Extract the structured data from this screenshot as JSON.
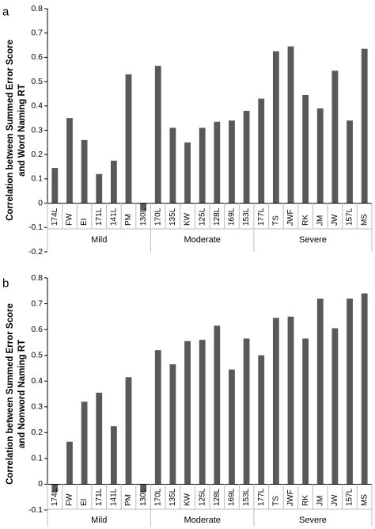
{
  "chart_data": [
    {
      "panel_label": "a",
      "type": "bar",
      "ylabel": [
        "Correlation between Summed Error Score",
        "and Word Naming RT"
      ],
      "ylim": [
        -0.2,
        0.8
      ],
      "yticks": [
        "-0.2",
        "-0.1",
        "0",
        "0.1",
        "0.2",
        "0.3",
        "0.4",
        "0.5",
        "0.6",
        "0.7",
        "0.8"
      ],
      "grid": false,
      "bar_color": "#595959",
      "categories": [
        "174L",
        "FW",
        "EI",
        "171L",
        "141L",
        "PM",
        "130L",
        "170L",
        "135L",
        "KW",
        "125L",
        "128L",
        "169L",
        "153L",
        "177L",
        "TS",
        "JWF",
        "RK",
        "JM",
        "JW",
        "157L",
        "MS"
      ],
      "values": [
        0.145,
        0.35,
        0.26,
        0.12,
        0.175,
        0.53,
        -0.03,
        0.565,
        0.31,
        0.25,
        0.31,
        0.335,
        0.34,
        0.38,
        0.43,
        0.625,
        0.645,
        0.445,
        0.39,
        0.545,
        0.34,
        0.635
      ],
      "groups": [
        {
          "label": "Mild",
          "start": 0,
          "end": 6
        },
        {
          "label": "Moderate",
          "start": 7,
          "end": 13
        },
        {
          "label": "Severe",
          "start": 14,
          "end": 21
        }
      ]
    },
    {
      "panel_label": "b",
      "type": "bar",
      "ylabel": [
        "Correlation between Summed Error Score",
        "and Nonword Naming RT"
      ],
      "ylim": [
        -0.1,
        0.8
      ],
      "yticks": [
        "-0.1",
        "0",
        "0.1",
        "0.2",
        "0.3",
        "0.4",
        "0.5",
        "0.6",
        "0.7",
        "0.8"
      ],
      "grid": false,
      "bar_color": "#595959",
      "categories": [
        "174L",
        "FW",
        "EI",
        "171L",
        "141L",
        "PM",
        "130L",
        "170L",
        "135L",
        "KW",
        "125L",
        "128L",
        "169L",
        "153L",
        "177L",
        "TS",
        "JWF",
        "RK",
        "JM",
        "JW",
        "157L",
        "MS"
      ],
      "values": [
        -0.03,
        0.165,
        0.32,
        0.355,
        0.225,
        0.415,
        -0.03,
        0.52,
        0.465,
        0.555,
        0.56,
        0.615,
        0.445,
        0.565,
        0.5,
        0.645,
        0.65,
        0.565,
        0.72,
        0.605,
        0.72,
        0.74
      ],
      "groups": [
        {
          "label": "Mild",
          "start": 0,
          "end": 6
        },
        {
          "label": "Moderate",
          "start": 7,
          "end": 13
        },
        {
          "label": "Severe",
          "start": 14,
          "end": 21
        }
      ]
    }
  ]
}
